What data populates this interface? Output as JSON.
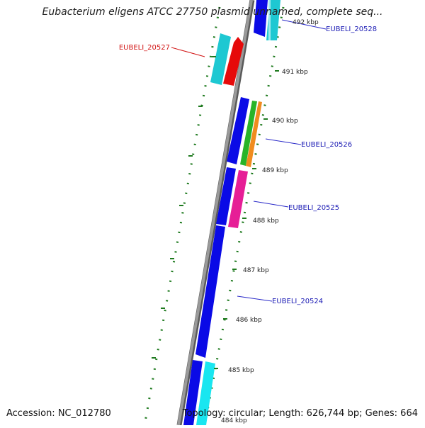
{
  "title": "Eubacterium eligens ATCC 27750 plasmid unnamed, complete seq...",
  "footer": {
    "accession": "Accession: NC_012780",
    "summary": "Topology: circular; Length: 626,744 bp; Genes: 664"
  },
  "kbp_labels": [
    "492 kbp",
    "491 kbp",
    "490 kbp",
    "489 kbp",
    "488 kbp",
    "487 kbp",
    "486 kbp",
    "485 kbp",
    "484 kbp"
  ],
  "gene_labels": [
    {
      "text": "EUBELI_20528",
      "color": "#1a1ab4"
    },
    {
      "text": "EUBELI_20527",
      "color": "#d21414"
    },
    {
      "text": "EUBELI_20526",
      "color": "#1a1ab4"
    },
    {
      "text": "EUBELI_20525",
      "color": "#1a1ab4"
    },
    {
      "text": "EUBELI_20524",
      "color": "#1a1ab4"
    }
  ],
  "colors": {
    "backbone": "#8a8a8a",
    "forward_gene": "#0a0ae6",
    "cyan_gene": "#1ec8d2",
    "red_gene": "#e60a0a",
    "green_gene": "#28b428",
    "orange_gene": "#f08c1e",
    "magenta_gene": "#e61e96",
    "aqua_gene": "#19e6f0",
    "tick": "#1e7a1e",
    "label_line_blue": "#2828c8",
    "label_line_red": "#d21414"
  }
}
